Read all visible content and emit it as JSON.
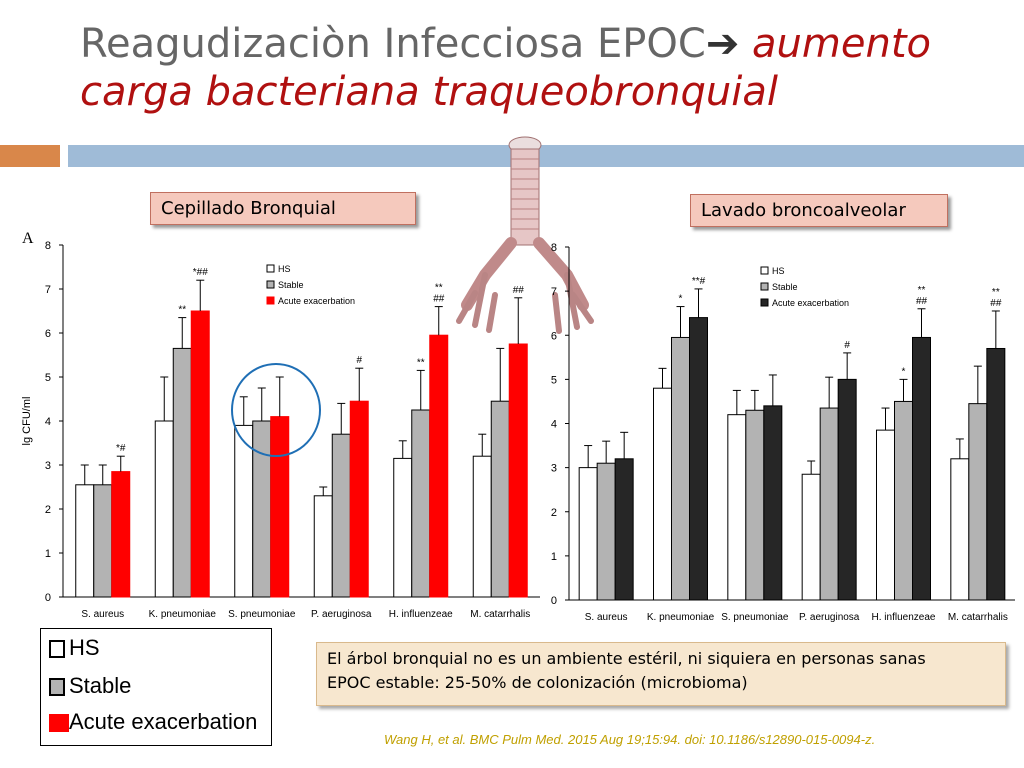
{
  "slide": {
    "title_main": "Reagudizaciòn Infecciosa EPOC",
    "title_arrow": "➔",
    "title_accent": " aumento carga bacteriana traqueobronquial",
    "label_left": "Cepillado Bronquial",
    "label_right": "Lavado broncoalveolar",
    "panel_letter": "A",
    "note_line1": "El árbol bronquial no es un ambiente estéril, ni siquiera en personas sanas",
    "note_line2": "EPOC estable: 25-50% de colonización (microbioma)",
    "citation": "Wang H, et al. BMC Pulm Med. 2015 Aug 19;15:94. doi: 10.1186/s12890-015-0094-z.",
    "legend_big": [
      "HS",
      "Stable",
      "Acute exacerbation"
    ],
    "colors": {
      "hs": "#ffffff",
      "stable": "#b3b3b3",
      "acute_left": "#ff0000",
      "acute_right": "#262626",
      "blue_circle": "#1f6fb5"
    }
  },
  "chart_data": [
    {
      "type": "bar",
      "ylabel": "lg CFU/ml",
      "ylim": [
        0,
        8
      ],
      "yticks": [
        "0",
        "1",
        "2",
        "3",
        "4",
        "5",
        "6",
        "7",
        "8"
      ],
      "categories": [
        "S. aureus",
        "K. pneumoniae",
        "S. pneumoniae",
        "P. aeruginosa",
        "H. influenzeae",
        "M. catarrhalis"
      ],
      "legend": [
        "HS",
        "Stable",
        "Acute exacerbation"
      ],
      "series": [
        {
          "name": "HS",
          "values": [
            2.55,
            4.0,
            3.9,
            2.3,
            3.15,
            3.2
          ],
          "errors": [
            0.45,
            1.0,
            0.65,
            0.2,
            0.4,
            0.5
          ]
        },
        {
          "name": "Stable",
          "values": [
            2.55,
            5.65,
            4.0,
            3.7,
            4.25,
            4.45
          ],
          "errors": [
            0.45,
            0.7,
            0.75,
            0.7,
            0.9,
            1.2
          ]
        },
        {
          "name": "Acute exacerbation",
          "values": [
            2.85,
            6.5,
            4.1,
            4.45,
            5.95,
            5.75
          ],
          "errors": [
            0.35,
            0.7,
            0.9,
            0.75,
            0.65,
            1.05
          ]
        }
      ],
      "annotations": [
        {
          "category": "S. aureus",
          "series": "Acute exacerbation",
          "text": "*#"
        },
        {
          "category": "K. pneumoniae",
          "series": "Stable",
          "text": "**"
        },
        {
          "category": "K. pneumoniae",
          "series": "Acute exacerbation",
          "text": "*##"
        },
        {
          "category": "P. aeruginosa",
          "series": "Acute exacerbation",
          "text": "#"
        },
        {
          "category": "H. influenzeae",
          "series": "Stable",
          "text": "**"
        },
        {
          "category": "H. influenzeae",
          "series": "Acute exacerbation",
          "text": "**\n##"
        },
        {
          "category": "M. catarrhalis",
          "series": "Acute exacerbation",
          "text": "##"
        }
      ]
    },
    {
      "type": "bar",
      "ylim": [
        0,
        8
      ],
      "yticks": [
        "0",
        "1",
        "2",
        "3",
        "4",
        "5",
        "6",
        "7",
        "8"
      ],
      "categories": [
        "S. aureus",
        "K. pneumoniae",
        "S. pneumoniae",
        "P. aeruginosa",
        "H. influenzeae",
        "M. catarrhalis"
      ],
      "legend": [
        "HS",
        "Stable",
        "Acute exacerbation"
      ],
      "series": [
        {
          "name": "HS",
          "values": [
            3.0,
            4.8,
            4.2,
            2.85,
            3.85,
            3.2
          ],
          "errors": [
            0.5,
            0.45,
            0.55,
            0.3,
            0.5,
            0.45
          ]
        },
        {
          "name": "Stable",
          "values": [
            3.1,
            5.95,
            4.3,
            4.35,
            4.5,
            4.45
          ],
          "errors": [
            0.5,
            0.7,
            0.45,
            0.7,
            0.5,
            0.85
          ]
        },
        {
          "name": "Acute exacerbation",
          "values": [
            3.2,
            6.4,
            4.4,
            5.0,
            5.95,
            5.7
          ],
          "errors": [
            0.6,
            0.65,
            0.7,
            0.6,
            0.65,
            0.85
          ]
        }
      ],
      "annotations": [
        {
          "category": "K. pneumoniae",
          "series": "Stable",
          "text": "*"
        },
        {
          "category": "K. pneumoniae",
          "series": "Acute exacerbation",
          "text": "**#"
        },
        {
          "category": "P. aeruginosa",
          "series": "Acute exacerbation",
          "text": "#"
        },
        {
          "category": "H. influenzeae",
          "series": "Stable",
          "text": "*"
        },
        {
          "category": "H. influenzeae",
          "series": "Acute exacerbation",
          "text": "**\n##"
        },
        {
          "category": "M. catarrhalis",
          "series": "Acute exacerbation",
          "text": "**\n##"
        }
      ]
    }
  ]
}
